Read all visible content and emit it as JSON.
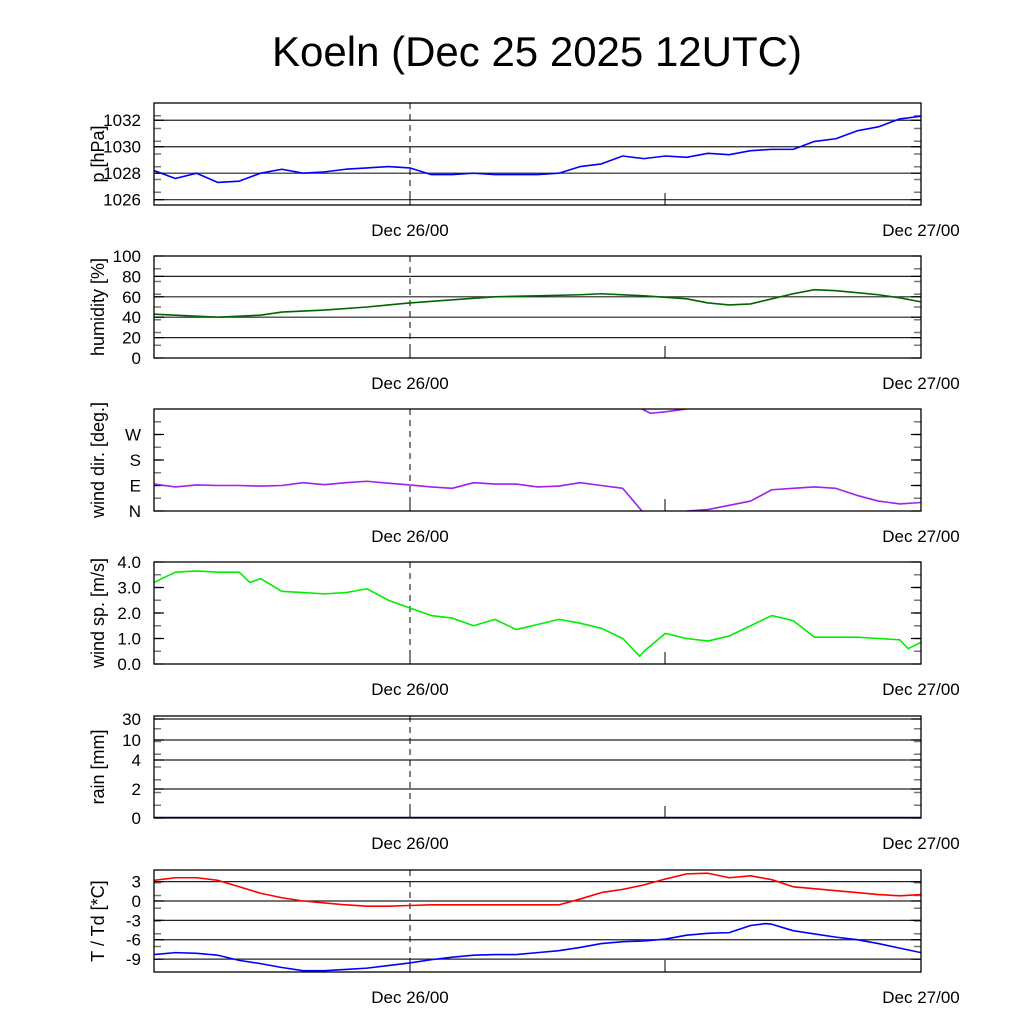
{
  "title": "Koeln (Dec 25 2025 12UTC)",
  "chart_data": [
    {
      "type": "line",
      "id": "pressure",
      "ylabel": "p [hPa]",
      "yticks": [
        1026,
        1028,
        1030,
        1032
      ],
      "ytick_labels": [
        "1026",
        "1028",
        "1030",
        "1032"
      ],
      "ylim": [
        1025.6,
        1033.3
      ],
      "xlabels": [
        "Dec 26/00",
        "Dec 27/00"
      ],
      "series": [
        {
          "name": "p",
          "color": "#0000ff",
          "hours": [
            0,
            1,
            2,
            3,
            4,
            5,
            6,
            7,
            8,
            9,
            10,
            11,
            12,
            13,
            14,
            15,
            16,
            17,
            18,
            19,
            20,
            21,
            22,
            23,
            24,
            25,
            26,
            27,
            28,
            29,
            30,
            31,
            32,
            33,
            34,
            35,
            36
          ],
          "values": [
            1028.2,
            1027.6,
            1028.0,
            1027.3,
            1027.4,
            1028.0,
            1028.3,
            1028.0,
            1028.1,
            1028.3,
            1028.4,
            1028.5,
            1028.4,
            1027.9,
            1027.9,
            1028.0,
            1027.9,
            1027.9,
            1027.9,
            1028.0,
            1028.5,
            1028.7,
            1029.3,
            1029.1,
            1029.3,
            1029.2,
            1029.5,
            1029.4,
            1029.7,
            1029.8,
            1029.8,
            1030.4,
            1030.6,
            1031.2,
            1031.5,
            1032.1,
            1032.3
          ]
        }
      ]
    },
    {
      "type": "line",
      "id": "humidity",
      "ylabel": "humidity [%]",
      "yticks": [
        0,
        20,
        40,
        60,
        80,
        100
      ],
      "ytick_labels": [
        "0",
        "20",
        "40",
        "60",
        "80",
        "100"
      ],
      "ylim": [
        0,
        100
      ],
      "xlabels": [
        "Dec 26/00",
        "Dec 27/00"
      ],
      "series": [
        {
          "name": "humidity",
          "color": "#006400",
          "hours": [
            0,
            3,
            4,
            5,
            6,
            7,
            8,
            10,
            11,
            12,
            14,
            16,
            18,
            20,
            21,
            23,
            25,
            26,
            27,
            28,
            29,
            30,
            31,
            32,
            33,
            34,
            35,
            36
          ],
          "values": [
            43,
            40,
            41,
            42,
            45,
            46,
            47,
            50,
            52,
            54,
            57,
            60,
            61,
            62,
            63,
            61,
            58,
            54,
            52,
            53,
            58,
            63,
            67,
            66,
            64,
            62,
            59,
            55
          ]
        }
      ]
    },
    {
      "type": "line",
      "id": "wind_direction",
      "ylabel": "wind dir. [deg.]",
      "yticks": [
        0,
        90,
        180,
        270
      ],
      "ytick_labels": [
        "N",
        "E",
        "S",
        "W"
      ],
      "ylim": [
        0,
        360
      ],
      "xlabels": [
        "Dec 26/00",
        "Dec 27/00"
      ],
      "series": [
        {
          "name": "wind direction",
          "color": "#a020f0",
          "hours": [
            0,
            1,
            2,
            3,
            4,
            5,
            6,
            7,
            8,
            9,
            10,
            11,
            12,
            13,
            14,
            15,
            16,
            17,
            18,
            19,
            20,
            21,
            22,
            22.9,
            23.3,
            24,
            25,
            26,
            27,
            28,
            29,
            30,
            31,
            32,
            33,
            34,
            35,
            36
          ],
          "values": [
            95,
            85,
            92,
            90,
            90,
            88,
            90,
            100,
            93,
            100,
            105,
            98,
            92,
            85,
            80,
            100,
            95,
            95,
            85,
            88,
            100,
            90,
            80,
            0,
            -15,
            -10,
            0,
            5,
            20,
            35,
            75,
            80,
            85,
            80,
            55,
            35,
            25,
            30
          ]
        }
      ]
    },
    {
      "type": "line",
      "id": "wind_speed",
      "ylabel": "wind sp. [m/s]",
      "yticks": [
        0,
        1,
        2,
        3,
        4
      ],
      "ytick_labels": [
        "0.0",
        "1.0",
        "2.0",
        "3.0",
        "4.0"
      ],
      "ylim": [
        0,
        4
      ],
      "xlabels": [
        "Dec 26/00",
        "Dec 27/00"
      ],
      "series": [
        {
          "name": "wind speed",
          "color": "#00ee00",
          "hours": [
            0,
            1,
            2,
            3,
            4,
            4.5,
            5,
            6,
            7,
            8,
            9,
            10,
            11,
            12,
            13,
            14,
            15,
            16,
            17,
            18,
            19,
            20,
            21,
            22,
            22.8,
            23,
            24,
            25,
            26,
            27,
            28,
            29,
            30,
            31,
            32,
            33,
            34,
            35,
            35.4,
            36
          ],
          "values": [
            3.2,
            3.6,
            3.65,
            3.6,
            3.6,
            3.2,
            3.35,
            2.85,
            2.8,
            2.75,
            2.8,
            2.95,
            2.5,
            2.2,
            1.9,
            1.8,
            1.5,
            1.75,
            1.35,
            1.55,
            1.75,
            1.6,
            1.4,
            1.0,
            0.3,
            0.5,
            1.2,
            1.0,
            0.9,
            1.1,
            1.5,
            1.9,
            1.7,
            1.05,
            1.05,
            1.05,
            1.0,
            0.95,
            0.6,
            0.85
          ]
        }
      ]
    },
    {
      "type": "line",
      "id": "rain",
      "ylabel": "rain [mm]",
      "yticks": [
        0,
        2,
        4,
        10,
        30
      ],
      "ytick_labels": [
        "0",
        "2",
        "4",
        "10",
        "30"
      ],
      "ylim": [
        0,
        30
      ],
      "xlabels": [
        "Dec 26/00",
        "Dec 27/00"
      ],
      "series": [
        {
          "name": "rain",
          "color": "#000080",
          "hours": [
            0,
            36
          ],
          "values": [
            0,
            0
          ]
        }
      ]
    },
    {
      "type": "line",
      "id": "temperature",
      "ylabel": "T / Td [*C]",
      "yticks": [
        -9,
        -6,
        -3,
        0,
        3
      ],
      "ytick_labels": [
        "-9",
        "-6",
        "-3",
        "0",
        "3"
      ],
      "ylim": [
        -11,
        4.8
      ],
      "xlabels": [
        "Dec 26/00",
        "Dec 27/00"
      ],
      "series": [
        {
          "name": "T",
          "color": "#ff0000",
          "hours": [
            0,
            1,
            2,
            3,
            4,
            5,
            6,
            7,
            8,
            9,
            10,
            11,
            12,
            13,
            16,
            19,
            20,
            21,
            22,
            23,
            24,
            25,
            26,
            27,
            28,
            29,
            30,
            31,
            32,
            33,
            34,
            35,
            36
          ],
          "values": [
            3.2,
            3.6,
            3.6,
            3.2,
            2.2,
            1.2,
            0.5,
            0,
            -0.3,
            -0.6,
            -0.8,
            -0.8,
            -0.7,
            -0.6,
            -0.6,
            -0.6,
            0.3,
            1.3,
            1.8,
            2.5,
            3.4,
            4.2,
            4.3,
            3.6,
            3.9,
            3.3,
            2.2,
            1.9,
            1.6,
            1.3,
            1.0,
            0.8,
            1.0
          ]
        },
        {
          "name": "Td",
          "color": "#0000ff",
          "hours": [
            0,
            1,
            2,
            3,
            4,
            5,
            6,
            7,
            8,
            9,
            10,
            11,
            12,
            13,
            14,
            15,
            16,
            17,
            18,
            19,
            20,
            21,
            22,
            23,
            24,
            25,
            26,
            27,
            28,
            28.7,
            29,
            30,
            31,
            32,
            33,
            34,
            35,
            36
          ],
          "values": [
            -8.3,
            -8.0,
            -8.1,
            -8.4,
            -9.2,
            -9.7,
            -10.3,
            -10.8,
            -10.8,
            -10.6,
            -10.4,
            -10.0,
            -9.6,
            -9.1,
            -8.7,
            -8.4,
            -8.3,
            -8.3,
            -8.0,
            -7.7,
            -7.2,
            -6.6,
            -6.3,
            -6.2,
            -5.9,
            -5.3,
            -5.0,
            -4.9,
            -3.8,
            -3.5,
            -3.6,
            -4.6,
            -5.1,
            -5.6,
            -6.0,
            -6.6,
            -7.3,
            -8.0
          ]
        }
      ]
    }
  ]
}
